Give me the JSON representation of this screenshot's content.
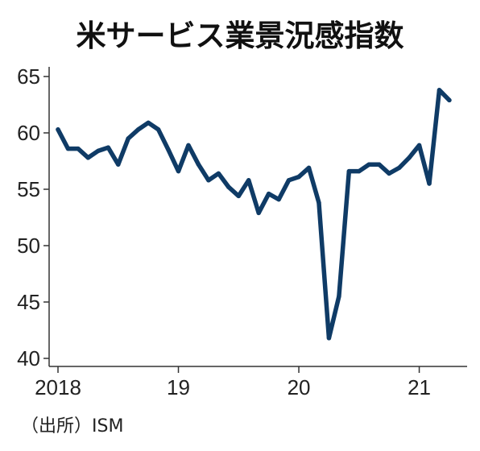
{
  "chart_data": {
    "type": "line",
    "title": "米サービス業景況感指数",
    "source": "（出所）ISM",
    "x": [
      "2018-01",
      "2018-02",
      "2018-03",
      "2018-04",
      "2018-05",
      "2018-06",
      "2018-07",
      "2018-08",
      "2018-09",
      "2018-10",
      "2018-11",
      "2018-12",
      "2019-01",
      "2019-02",
      "2019-03",
      "2019-04",
      "2019-05",
      "2019-06",
      "2019-07",
      "2019-08",
      "2019-09",
      "2019-10",
      "2019-11",
      "2019-12",
      "2020-01",
      "2020-02",
      "2020-03",
      "2020-04",
      "2020-05",
      "2020-06",
      "2020-07",
      "2020-08",
      "2020-09",
      "2020-10",
      "2020-11",
      "2020-12",
      "2021-01",
      "2021-02",
      "2021-03",
      "2021-04"
    ],
    "series": [
      {
        "color": "#0f3b66",
        "values": [
          60.3,
          58.6,
          58.6,
          57.8,
          58.4,
          58.7,
          57.2,
          59.5,
          60.3,
          60.9,
          60.3,
          58.5,
          56.6,
          58.9,
          57.2,
          55.8,
          56.4,
          55.2,
          54.4,
          55.8,
          52.9,
          54.6,
          54.1,
          55.8,
          56.1,
          56.9,
          53.8,
          41.8,
          45.5,
          56.6,
          56.6,
          57.2,
          57.2,
          56.4,
          56.9,
          57.8,
          58.9,
          55.5,
          63.8,
          62.9
        ]
      }
    ],
    "ylim": [
      40,
      65
    ],
    "yticks": [
      65,
      60,
      55,
      50,
      45,
      40
    ],
    "xticks": [
      {
        "label": "2018",
        "at": "2018-01"
      },
      {
        "label": "19",
        "at": "2019-01"
      },
      {
        "label": "20",
        "at": "2020-01"
      },
      {
        "label": "21",
        "at": "2021-01"
      }
    ],
    "grid": false
  }
}
